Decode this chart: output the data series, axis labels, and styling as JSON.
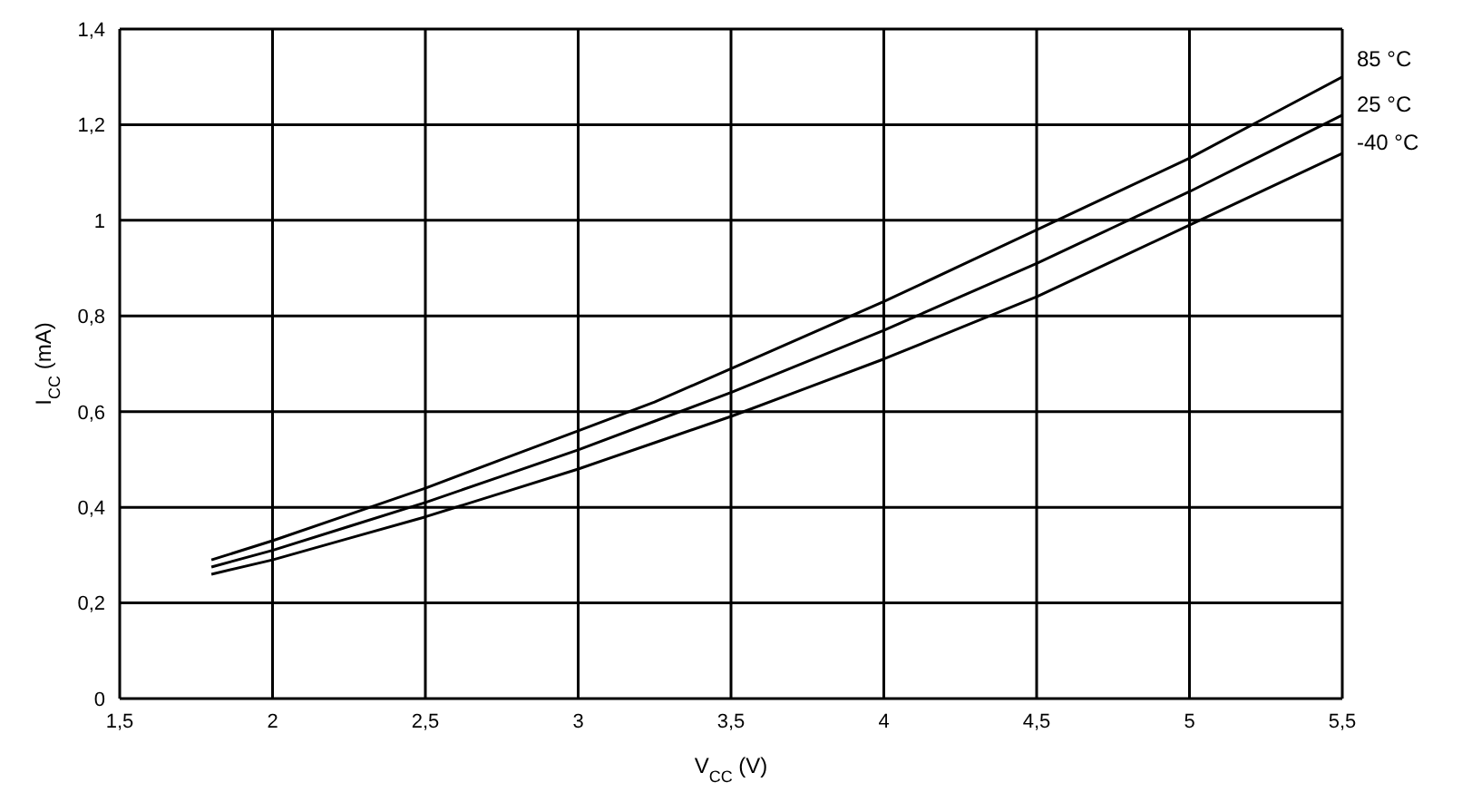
{
  "chart_data": {
    "type": "line",
    "xlabel": "V$_{CC}$ (V)",
    "ylabel": "I$_{CC}$ (mA)",
    "x": [
      1.8,
      2,
      2.25,
      2.5,
      2.75,
      3,
      3.25,
      3.5,
      3.75,
      4,
      4.25,
      4.5,
      4.75,
      5,
      5.25,
      5.5
    ],
    "series": [
      {
        "name": "85 °C",
        "color": "#000000",
        "values": [
          0.29,
          0.33,
          0.385,
          0.44,
          0.5,
          0.56,
          0.62,
          0.69,
          0.76,
          0.83,
          0.905,
          0.98,
          1.055,
          1.13,
          1.215,
          1.3
        ]
      },
      {
        "name": "25 °C",
        "color": "#000000",
        "values": [
          0.275,
          0.31,
          0.36,
          0.41,
          0.465,
          0.52,
          0.58,
          0.64,
          0.705,
          0.77,
          0.84,
          0.91,
          0.985,
          1.06,
          1.14,
          1.22
        ]
      },
      {
        "name": "-40 °C",
        "color": "#000000",
        "values": [
          0.26,
          0.29,
          0.335,
          0.38,
          0.43,
          0.48,
          0.535,
          0.59,
          0.65,
          0.71,
          0.775,
          0.84,
          0.915,
          0.99,
          1.065,
          1.14
        ]
      }
    ],
    "xlim": [
      1.5,
      5.5
    ],
    "xticks": [
      {
        "value": 1.5,
        "label": "1,5"
      },
      2,
      {
        "value": 2.5,
        "label": "2,5"
      },
      3,
      {
        "value": 3.5,
        "label": "3,5"
      },
      4,
      {
        "value": 4.5,
        "label": "4,5"
      },
      5,
      {
        "value": 5.5,
        "label": "5,5"
      }
    ],
    "ylim": [
      0,
      1.4
    ],
    "yticks": [
      0,
      {
        "value": 0.2,
        "label": "0,2"
      },
      {
        "value": 0.4,
        "label": "0,4"
      },
      {
        "value": 0.6,
        "label": "0,6"
      },
      {
        "value": 0.8,
        "label": "0,8"
      },
      1,
      {
        "value": 1.2,
        "label": "1,2"
      },
      {
        "value": 1.4,
        "label": "1,4"
      }
    ],
    "grid": true,
    "marker": "none",
    "line_style": "solid",
    "legend": false
  }
}
